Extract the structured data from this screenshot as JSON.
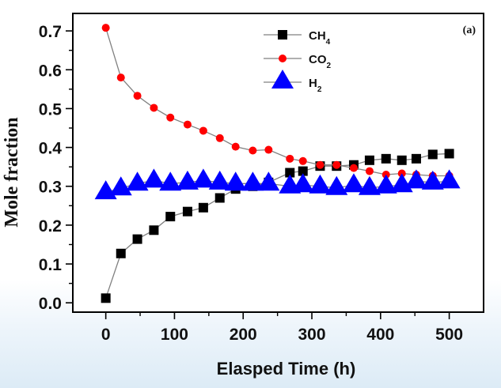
{
  "chart_data": {
    "type": "line",
    "title": "",
    "panel_label": "(a)",
    "xlabel": "Elasped Time (h)",
    "ylabel": "Mole fraction",
    "xlim": [
      -48,
      550
    ],
    "ylim": [
      -0.024,
      0.745
    ],
    "xticks": [
      0,
      100,
      200,
      300,
      400,
      500
    ],
    "xtick_labels": [
      "0",
      "100",
      "200",
      "300",
      "400",
      "500"
    ],
    "yticks": [
      0.0,
      0.1,
      0.2,
      0.3,
      0.4,
      0.5,
      0.6,
      0.7
    ],
    "ytick_labels": [
      "0.0",
      "0.1",
      "0.2",
      "0.3",
      "0.4",
      "0.5",
      "0.6",
      "0.7"
    ],
    "grid": false,
    "legend_position": "top-right",
    "x": [
      0,
      22,
      46,
      70,
      94,
      119,
      142,
      166,
      189,
      214,
      237,
      268,
      287,
      312,
      336,
      361,
      384,
      408,
      431,
      452,
      476,
      500
    ],
    "series": [
      {
        "name": "CH4",
        "label_main": "CH",
        "label_sub": "4",
        "marker": "square",
        "color": "#000000",
        "values": [
          0.012,
          0.127,
          0.164,
          0.187,
          0.222,
          0.235,
          0.245,
          0.27,
          0.293,
          0.3,
          0.31,
          0.335,
          0.339,
          0.352,
          0.352,
          0.355,
          0.367,
          0.371,
          0.367,
          0.371,
          0.382,
          0.384
        ]
      },
      {
        "name": "CO2",
        "label_main": "CO",
        "label_sub": "2",
        "marker": "circle",
        "color": "#ff0000",
        "values": [
          0.708,
          0.58,
          0.533,
          0.502,
          0.477,
          0.459,
          0.443,
          0.424,
          0.402,
          0.392,
          0.394,
          0.371,
          0.365,
          0.355,
          0.355,
          0.347,
          0.339,
          0.33,
          0.333,
          0.33,
          0.327,
          0.327
        ]
      },
      {
        "name": "H2",
        "label_main": "H",
        "label_sub": "2",
        "marker": "triangle",
        "color": "#0000ff",
        "values": [
          0.285,
          0.295,
          0.307,
          0.315,
          0.307,
          0.31,
          0.315,
          0.31,
          0.307,
          0.307,
          0.307,
          0.3,
          0.303,
          0.3,
          0.296,
          0.303,
          0.296,
          0.3,
          0.303,
          0.313,
          0.31,
          0.313
        ]
      }
    ],
    "line_color": "#808080"
  }
}
